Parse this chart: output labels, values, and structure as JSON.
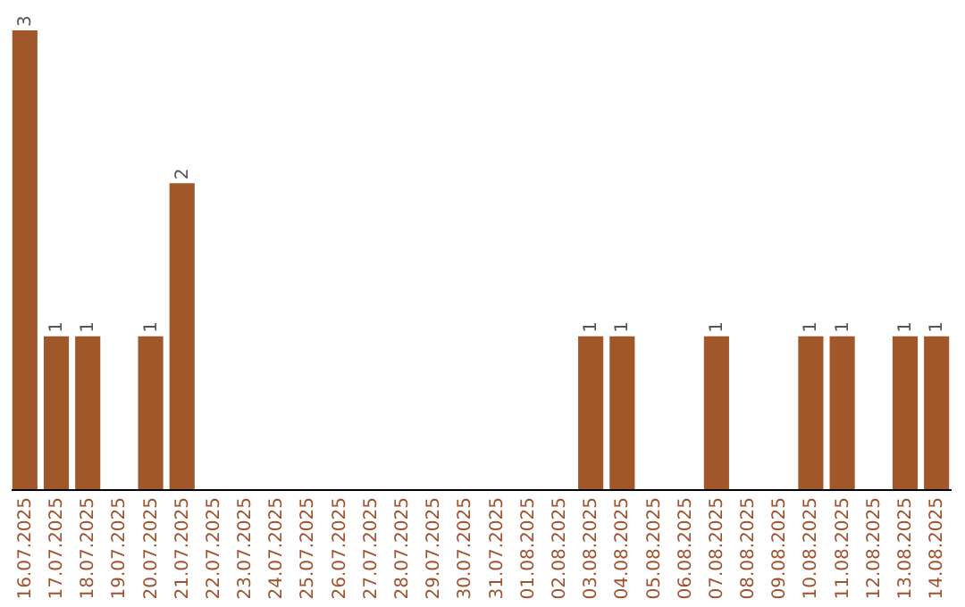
{
  "chart_data": {
    "type": "bar",
    "categories": [
      "16.07.2025",
      "17.07.2025",
      "18.07.2025",
      "19.07.2025",
      "20.07.2025",
      "21.07.2025",
      "22.07.2025",
      "23.07.2025",
      "24.07.2025",
      "25.07.2025",
      "26.07.2025",
      "27.07.2025",
      "28.07.2025",
      "29.07.2025",
      "30.07.2025",
      "31.07.2025",
      "01.08.2025",
      "02.08.2025",
      "03.08.2025",
      "04.08.2025",
      "05.08.2025",
      "06.08.2025",
      "07.08.2025",
      "08.08.2025",
      "09.08.2025",
      "10.08.2025",
      "11.08.2025",
      "12.08.2025",
      "13.08.2025",
      "14.08.2025"
    ],
    "values": [
      3,
      1,
      1,
      0,
      1,
      2,
      0,
      0,
      0,
      0,
      0,
      0,
      0,
      0,
      0,
      0,
      0,
      0,
      1,
      1,
      0,
      0,
      1,
      0,
      0,
      1,
      1,
      0,
      1,
      1
    ],
    "value_labels": [
      "3",
      "1",
      "1",
      null,
      "1",
      "2",
      null,
      null,
      null,
      null,
      null,
      null,
      null,
      null,
      null,
      null,
      null,
      null,
      "1",
      "1",
      null,
      null,
      "1",
      null,
      null,
      "1",
      "1",
      null,
      "1",
      "1"
    ],
    "color": "#a0582a",
    "tick_labels": "x"
  }
}
